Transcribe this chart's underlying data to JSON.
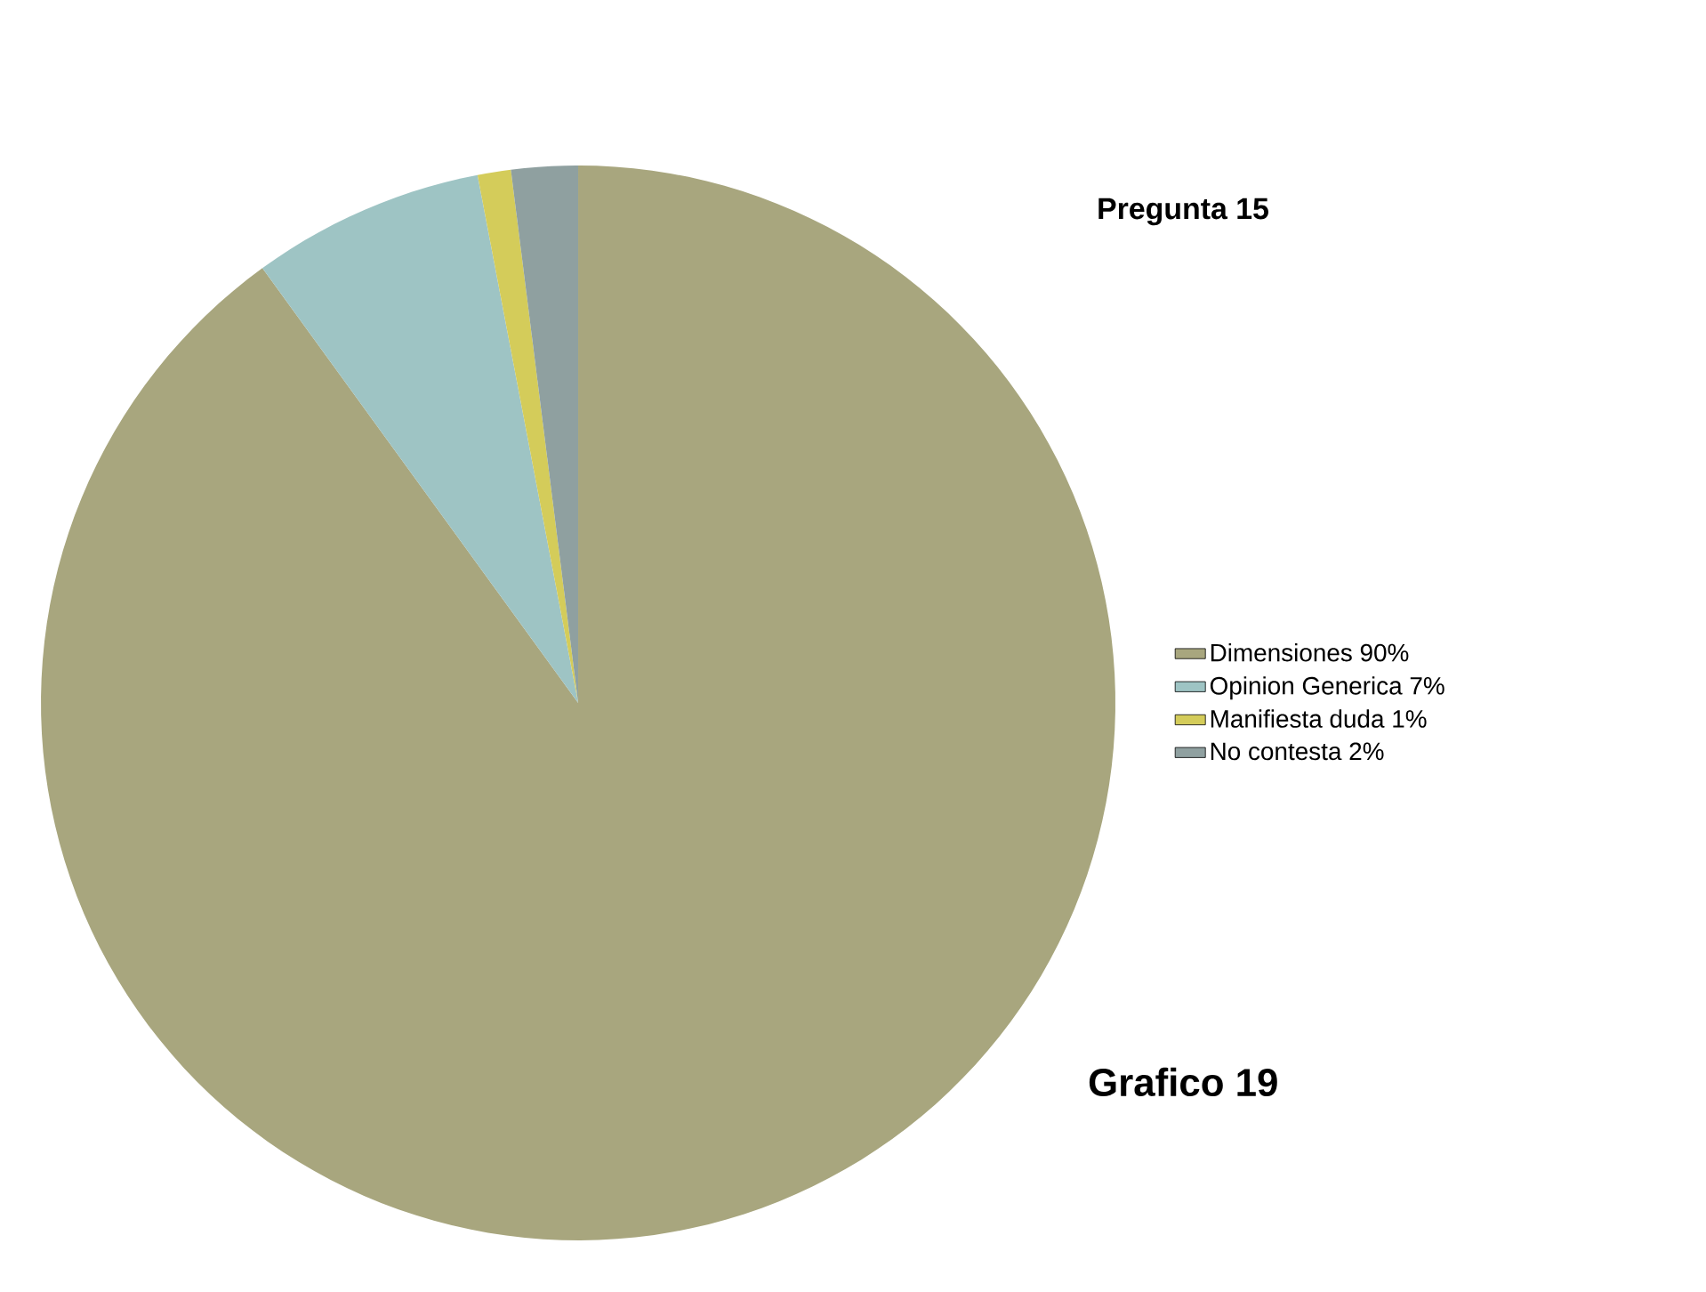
{
  "chart_data": {
    "type": "pie",
    "title": "Pregunta 15",
    "categories": [
      "Dimensiones 90%",
      "Opinion Generica 7%",
      "Manifiesta duda 1%",
      "No contesta 2%"
    ],
    "values": [
      90,
      7,
      1,
      2
    ],
    "colors": [
      "#a8a67e",
      "#9ec4c4",
      "#d4cc5a",
      "#8fa0a0"
    ],
    "legend": "right",
    "annotations": [
      "Grafico 19"
    ]
  }
}
